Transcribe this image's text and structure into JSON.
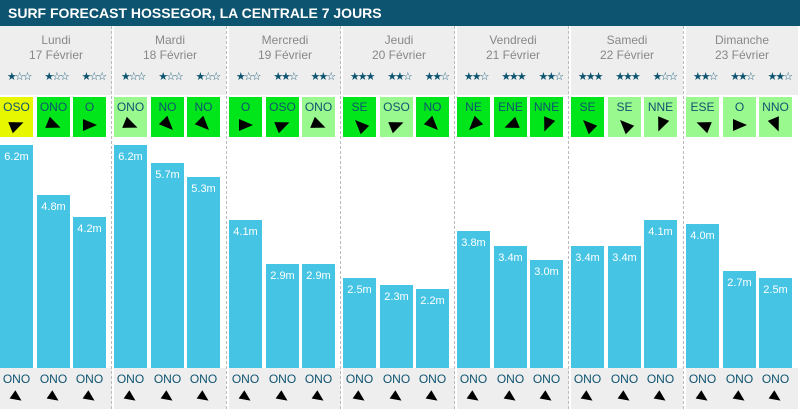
{
  "title": "SURF FORECAST HOSSEGOR, LA CENTRALE 7 JOURS",
  "colors": {
    "header": "#0d5470",
    "bar": "#45c4e4",
    "wind_strong": "#00e61a",
    "wind_light": "#99f98f",
    "wind_onshore": "#e6f700"
  },
  "days": [
    {
      "name": "Lundi",
      "date": "17 Février",
      "slots": [
        {
          "stars": 1,
          "wind": "OSO",
          "wind_color": "#e6f700",
          "height": 6.2,
          "height_label": "6.2m",
          "swell": "ONO"
        },
        {
          "stars": 1,
          "wind": "ONO",
          "wind_color": "#00e61a",
          "height": 4.8,
          "height_label": "4.8m",
          "swell": "ONO"
        },
        {
          "stars": 1,
          "wind": "O",
          "wind_color": "#00e61a",
          "height": 4.2,
          "height_label": "4.2m",
          "swell": "ONO"
        }
      ]
    },
    {
      "name": "Mardi",
      "date": "18 Février",
      "slots": [
        {
          "stars": 1,
          "wind": "ONO",
          "wind_color": "#99f98f",
          "height": 6.2,
          "height_label": "6.2m",
          "swell": "ONO"
        },
        {
          "stars": 1,
          "wind": "NO",
          "wind_color": "#00e61a",
          "height": 5.7,
          "height_label": "5.7m",
          "swell": "ONO"
        },
        {
          "stars": 1,
          "wind": "NO",
          "wind_color": "#00e61a",
          "height": 5.3,
          "height_label": "5.3m",
          "swell": "ONO"
        }
      ]
    },
    {
      "name": "Mercredi",
      "date": "19 Février",
      "slots": [
        {
          "stars": 1,
          "wind": "O",
          "wind_color": "#00e61a",
          "height": 4.1,
          "height_label": "4.1m",
          "swell": "ONO"
        },
        {
          "stars": 2,
          "wind": "OSO",
          "wind_color": "#00e61a",
          "height": 2.9,
          "height_label": "2.9m",
          "swell": "ONO"
        },
        {
          "stars": 2,
          "wind": "ONO",
          "wind_color": "#99f98f",
          "height": 2.9,
          "height_label": "2.9m",
          "swell": "ONO"
        }
      ]
    },
    {
      "name": "Jeudi",
      "date": "20 Février",
      "slots": [
        {
          "stars": 3,
          "wind": "SE",
          "wind_color": "#00e61a",
          "height": 2.5,
          "height_label": "2.5m",
          "swell": "ONO"
        },
        {
          "stars": 2,
          "wind": "OSO",
          "wind_color": "#99f98f",
          "height": 2.3,
          "height_label": "2.3m",
          "swell": "ONO"
        },
        {
          "stars": 2,
          "wind": "NO",
          "wind_color": "#00e61a",
          "height": 2.2,
          "height_label": "2.2m",
          "swell": "ONO"
        }
      ]
    },
    {
      "name": "Vendredi",
      "date": "21 Février",
      "slots": [
        {
          "stars": 2,
          "wind": "NE",
          "wind_color": "#00e61a",
          "height": 3.8,
          "height_label": "3.8m",
          "swell": "ONO"
        },
        {
          "stars": 3,
          "wind": "ENE",
          "wind_color": "#00e61a",
          "height": 3.4,
          "height_label": "3.4m",
          "swell": "ONO"
        },
        {
          "stars": 2,
          "wind": "NNE",
          "wind_color": "#00e61a",
          "height": 3.0,
          "height_label": "3.0m",
          "swell": "ONO"
        }
      ]
    },
    {
      "name": "Samedi",
      "date": "22 Février",
      "slots": [
        {
          "stars": 3,
          "wind": "SE",
          "wind_color": "#00e61a",
          "height": 3.4,
          "height_label": "3.4m",
          "swell": "ONO"
        },
        {
          "stars": 3,
          "wind": "SE",
          "wind_color": "#99f98f",
          "height": 3.4,
          "height_label": "3.4m",
          "swell": "ONO"
        },
        {
          "stars": 1,
          "wind": "NNE",
          "wind_color": "#99f98f",
          "height": 4.1,
          "height_label": "4.1m",
          "swell": "ONO"
        }
      ]
    },
    {
      "name": "Dimanche",
      "date": "23 Février",
      "slots": [
        {
          "stars": 2,
          "wind": "ESE",
          "wind_color": "#99f98f",
          "height": 4.0,
          "height_label": "4.0m",
          "swell": "ONO"
        },
        {
          "stars": 2,
          "wind": "O",
          "wind_color": "#99f98f",
          "height": 2.7,
          "height_label": "2.7m",
          "swell": "ONO"
        },
        {
          "stars": 2,
          "wind": "NNO",
          "wind_color": "#99f98f",
          "height": 2.5,
          "height_label": "2.5m",
          "swell": "ONO"
        }
      ]
    }
  ]
}
